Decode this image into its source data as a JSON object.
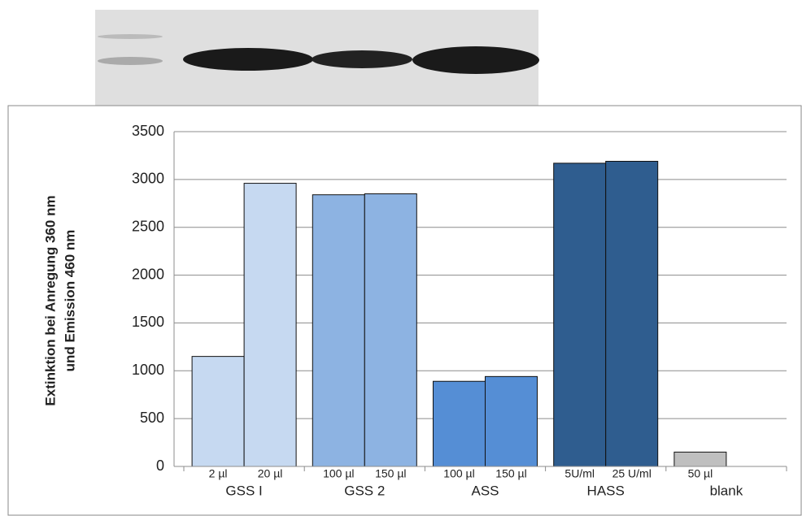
{
  "chart_data": {
    "type": "bar",
    "y_title_lines": [
      "Extinktion bei Anregung 360 nm",
      "und Emission 460 nm"
    ],
    "groups": [
      {
        "name": "GSS I",
        "color": "#c6d9f1",
        "bars": [
          {
            "label": "2 µl",
            "value": 1150
          },
          {
            "label": "20 µl",
            "value": 2960
          }
        ]
      },
      {
        "name": "GSS 2",
        "color": "#8db3e2",
        "bars": [
          {
            "label": "100 µl",
            "value": 2840
          },
          {
            "label": "150 µl",
            "value": 2850
          }
        ]
      },
      {
        "name": "ASS",
        "color": "#558ed5",
        "bars": [
          {
            "label": "100 µl",
            "value": 890
          },
          {
            "label": "150 µl",
            "value": 940
          }
        ]
      },
      {
        "name": "HASS",
        "color": "#2f5d8f",
        "bars": [
          {
            "label": "5U/ml",
            "value": 3170
          },
          {
            "label": "25 U/ml",
            "value": 3190
          }
        ]
      },
      {
        "name": "blank",
        "color": "#bfbfbf",
        "bars": [
          {
            "label": "50 µl",
            "value": 150
          }
        ]
      }
    ],
    "ylim": [
      0,
      3500
    ],
    "yticks": [
      0,
      500,
      1000,
      1500,
      2000,
      2500,
      3000,
      3500
    ],
    "grid": true
  }
}
